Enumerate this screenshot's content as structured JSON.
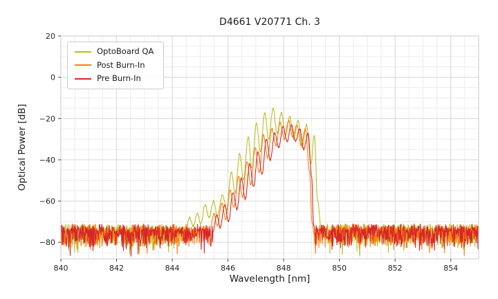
{
  "chart_data": {
    "type": "line",
    "title": "D4661 V20771 Ch. 3",
    "xlabel": "Wavelength [nm]",
    "ylabel": "Optical Power [dB]",
    "xlim": [
      840,
      855
    ],
    "ylim": [
      -88,
      20
    ],
    "xticks": [
      840,
      842,
      844,
      846,
      848,
      850,
      852,
      854
    ],
    "yticks": [
      20,
      0,
      -20,
      -40,
      -60,
      -80
    ],
    "x_minor_step": 0.5,
    "y_minor_step": 5,
    "grid": true,
    "legend_position": "upper left",
    "noise": {
      "floor_db": -74.5,
      "spread_db": 9,
      "spike_db": -87
    },
    "series": [
      {
        "name": "OptoBoard QA",
        "color": "#bcbd22",
        "envelope": [
          [
            844.5,
            -73
          ],
          [
            844.62,
            -68
          ],
          [
            844.75,
            -72
          ],
          [
            844.9,
            -66
          ],
          [
            845.02,
            -71
          ],
          [
            845.18,
            -62
          ],
          [
            845.32,
            -68
          ],
          [
            845.48,
            -60
          ],
          [
            845.62,
            -67
          ],
          [
            845.8,
            -57
          ],
          [
            845.95,
            -64
          ],
          [
            846.12,
            -46
          ],
          [
            846.26,
            -56
          ],
          [
            846.42,
            -37
          ],
          [
            846.56,
            -50
          ],
          [
            846.72,
            -29
          ],
          [
            846.86,
            -44
          ],
          [
            847.02,
            -22
          ],
          [
            847.16,
            -36
          ],
          [
            847.32,
            -17
          ],
          [
            847.46,
            -30
          ],
          [
            847.62,
            -15
          ],
          [
            847.76,
            -27
          ],
          [
            847.92,
            -17
          ],
          [
            848.06,
            -28
          ],
          [
            848.22,
            -19
          ],
          [
            848.36,
            -30
          ],
          [
            848.52,
            -21
          ],
          [
            848.66,
            -34
          ],
          [
            848.82,
            -23
          ],
          [
            848.98,
            -42
          ],
          [
            849.1,
            -28
          ],
          [
            849.22,
            -60
          ],
          [
            849.35,
            -74
          ]
        ]
      },
      {
        "name": "Post Burn-In",
        "color": "#ff7f0e",
        "envelope": [
          [
            845.35,
            -74
          ],
          [
            845.5,
            -66
          ],
          [
            845.62,
            -72
          ],
          [
            845.78,
            -61
          ],
          [
            845.92,
            -69
          ],
          [
            846.08,
            -55
          ],
          [
            846.22,
            -63
          ],
          [
            846.38,
            -48
          ],
          [
            846.52,
            -58
          ],
          [
            846.68,
            -41
          ],
          [
            846.82,
            -52
          ],
          [
            846.98,
            -34
          ],
          [
            847.12,
            -46
          ],
          [
            847.28,
            -28
          ],
          [
            847.42,
            -39
          ],
          [
            847.58,
            -25
          ],
          [
            847.72,
            -33
          ],
          [
            847.88,
            -22
          ],
          [
            848.02,
            -30
          ],
          [
            848.18,
            -21
          ],
          [
            848.32,
            -29
          ],
          [
            848.48,
            -23
          ],
          [
            848.62,
            -33
          ],
          [
            848.78,
            -25
          ],
          [
            848.92,
            -45
          ],
          [
            849.02,
            -70
          ],
          [
            849.1,
            -76
          ]
        ]
      },
      {
        "name": "Pre Burn-In",
        "color": "#d62728",
        "envelope": [
          [
            845.45,
            -75
          ],
          [
            845.6,
            -67
          ],
          [
            845.72,
            -73
          ],
          [
            845.88,
            -62
          ],
          [
            846.02,
            -70
          ],
          [
            846.18,
            -56
          ],
          [
            846.32,
            -64
          ],
          [
            846.48,
            -49
          ],
          [
            846.62,
            -59
          ],
          [
            846.78,
            -42
          ],
          [
            846.92,
            -53
          ],
          [
            847.08,
            -36
          ],
          [
            847.22,
            -47
          ],
          [
            847.38,
            -30
          ],
          [
            847.52,
            -40
          ],
          [
            847.68,
            -27
          ],
          [
            847.82,
            -34
          ],
          [
            847.98,
            -24
          ],
          [
            848.12,
            -31
          ],
          [
            848.28,
            -23
          ],
          [
            848.42,
            -31
          ],
          [
            848.58,
            -25
          ],
          [
            848.72,
            -35
          ],
          [
            848.88,
            -27
          ],
          [
            849.0,
            -48
          ],
          [
            849.08,
            -72
          ],
          [
            849.15,
            -77
          ]
        ]
      }
    ]
  }
}
